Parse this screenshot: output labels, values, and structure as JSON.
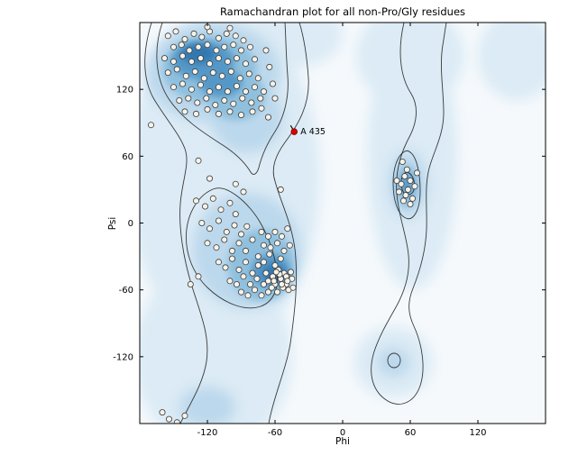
{
  "chart_data": {
    "type": "scatter",
    "title": "Ramachandran plot for all non-Pro/Gly residues",
    "xlabel": "Phi",
    "ylabel": "Psi",
    "xlim": [
      -180,
      180
    ],
    "ylim": [
      -180,
      180
    ],
    "xticks": [
      -120,
      -60,
      0,
      60,
      120
    ],
    "yticks": [
      -120,
      -60,
      0,
      60,
      120
    ],
    "grid": false,
    "legend": "none",
    "style": {
      "plot_bg": "#f5f9fc",
      "marker_fill": "#f7f3ea",
      "marker_edge": "#3c3c3c",
      "marker_radius": 3.1
    },
    "outlier": {
      "label": "A 435",
      "phi": -43,
      "psi": 82,
      "fill": "#dd0000",
      "edge": "#7a0000"
    },
    "series": [
      {
        "name": "non-Pro/Gly residues",
        "points": [
          [
            -155,
            168
          ],
          [
            -148,
            172
          ],
          [
            -140,
            165
          ],
          [
            -132,
            170
          ],
          [
            -125,
            167
          ],
          [
            -118,
            172
          ],
          [
            -110,
            166
          ],
          [
            -103,
            170
          ],
          [
            -95,
            168
          ],
          [
            -88,
            164
          ],
          [
            -150,
            158
          ],
          [
            -143,
            160
          ],
          [
            -136,
            155
          ],
          [
            -128,
            158
          ],
          [
            -120,
            160
          ],
          [
            -112,
            155
          ],
          [
            -105,
            158
          ],
          [
            -97,
            160
          ],
          [
            -90,
            155
          ],
          [
            -82,
            158
          ],
          [
            -158,
            148
          ],
          [
            -150,
            145
          ],
          [
            -142,
            150
          ],
          [
            -134,
            145
          ],
          [
            -126,
            148
          ],
          [
            -118,
            143
          ],
          [
            -110,
            148
          ],
          [
            -102,
            145
          ],
          [
            -94,
            148
          ],
          [
            -86,
            143
          ],
          [
            -78,
            147
          ],
          [
            -155,
            135
          ],
          [
            -147,
            138
          ],
          [
            -139,
            132
          ],
          [
            -131,
            136
          ],
          [
            -123,
            130
          ],
          [
            -115,
            135
          ],
          [
            -107,
            132
          ],
          [
            -99,
            136
          ],
          [
            -91,
            130
          ],
          [
            -83,
            134
          ],
          [
            -75,
            130
          ],
          [
            -150,
            122
          ],
          [
            -142,
            125
          ],
          [
            -134,
            120
          ],
          [
            -126,
            124
          ],
          [
            -118,
            118
          ],
          [
            -110,
            122
          ],
          [
            -102,
            118
          ],
          [
            -94,
            123
          ],
          [
            -86,
            118
          ],
          [
            -78,
            122
          ],
          [
            -70,
            118
          ],
          [
            -145,
            110
          ],
          [
            -137,
            112
          ],
          [
            -129,
            108
          ],
          [
            -121,
            112
          ],
          [
            -113,
            106
          ],
          [
            -105,
            110
          ],
          [
            -97,
            107
          ],
          [
            -89,
            112
          ],
          [
            -81,
            108
          ],
          [
            -73,
            112
          ],
          [
            -140,
            100
          ],
          [
            -130,
            98
          ],
          [
            -120,
            102
          ],
          [
            -110,
            98
          ],
          [
            -100,
            100
          ],
          [
            -90,
            97
          ],
          [
            -80,
            100
          ],
          [
            -72,
            103
          ],
          [
            -65,
            140
          ],
          [
            -62,
            125
          ],
          [
            -68,
            155
          ],
          [
            -60,
            112
          ],
          [
            -66,
            95
          ],
          [
            -120,
            176
          ],
          [
            -100,
            175
          ],
          [
            -130,
            20
          ],
          [
            -122,
            15
          ],
          [
            -115,
            22
          ],
          [
            -108,
            12
          ],
          [
            -100,
            18
          ],
          [
            -95,
            8
          ],
          [
            -125,
            0
          ],
          [
            -118,
            -5
          ],
          [
            -110,
            2
          ],
          [
            -103,
            -8
          ],
          [
            -96,
            -2
          ],
          [
            -90,
            -10
          ],
          [
            -85,
            -3
          ],
          [
            -120,
            -18
          ],
          [
            -112,
            -22
          ],
          [
            -105,
            -15
          ],
          [
            -98,
            -25
          ],
          [
            -92,
            -18
          ],
          [
            -86,
            -25
          ],
          [
            -80,
            -15
          ],
          [
            -110,
            -35
          ],
          [
            -104,
            -40
          ],
          [
            -98,
            -32
          ],
          [
            -92,
            -42
          ],
          [
            -86,
            -35
          ],
          [
            -80,
            -45
          ],
          [
            -75,
            -38
          ],
          [
            -100,
            -52
          ],
          [
            -94,
            -55
          ],
          [
            -88,
            -48
          ],
          [
            -82,
            -55
          ],
          [
            -76,
            -50
          ],
          [
            -70,
            -55
          ],
          [
            -90,
            -62
          ],
          [
            -84,
            -65
          ],
          [
            -78,
            -60
          ],
          [
            -72,
            -65
          ],
          [
            -66,
            -62
          ],
          [
            -75,
            -30
          ],
          [
            -70,
            -35
          ],
          [
            -65,
            -28
          ],
          [
            -60,
            -38
          ],
          [
            -55,
            -32
          ],
          [
            -68,
            -45
          ],
          [
            -62,
            -48
          ],
          [
            -57,
            -42
          ],
          [
            -52,
            -45
          ],
          [
            -66,
            -52
          ],
          [
            -60,
            -55
          ],
          [
            -55,
            -50
          ],
          [
            -50,
            -55
          ],
          [
            -63,
            -58
          ],
          [
            -58,
            -62
          ],
          [
            -53,
            -58
          ],
          [
            -48,
            -60
          ],
          [
            -70,
            -20
          ],
          [
            -64,
            -22
          ],
          [
            -58,
            -18
          ],
          [
            -52,
            -25
          ],
          [
            -47,
            -20
          ],
          [
            -60,
            -8
          ],
          [
            -54,
            -12
          ],
          [
            -49,
            -5
          ],
          [
            -72,
            -8
          ],
          [
            -66,
            -12
          ],
          [
            -55,
            30
          ],
          [
            -95,
            35
          ],
          [
            -88,
            28
          ],
          [
            -135,
            -55
          ],
          [
            -128,
            -48
          ],
          [
            -45,
            -50
          ],
          [
            -44,
            -58
          ],
          [
            -50,
            -48
          ],
          [
            -56,
            -46
          ],
          [
            -61,
            -52
          ],
          [
            -59,
            -44
          ],
          [
            -54,
            -55
          ],
          [
            -49,
            -52
          ],
          [
            -46,
            -44
          ],
          [
            55,
            42
          ],
          [
            60,
            38
          ],
          [
            52,
            35
          ],
          [
            58,
            30
          ],
          [
            64,
            33
          ],
          [
            50,
            28
          ],
          [
            56,
            25
          ],
          [
            62,
            22
          ],
          [
            54,
            20
          ],
          [
            60,
            17
          ],
          [
            48,
            38
          ],
          [
            66,
            45
          ],
          [
            57,
            48
          ],
          [
            53,
            55
          ],
          [
            -170,
            88
          ],
          [
            -128,
            56
          ],
          [
            -154,
            -176
          ],
          [
            -140,
            -173
          ],
          [
            -147,
            -179
          ],
          [
            -160,
            -170
          ],
          [
            -118,
            40
          ]
        ]
      }
    ],
    "density": {
      "levels": [
        {
          "color": "#dcebf5",
          "opacity": 1,
          "blur": "blur7",
          "blobs": [
            [
              -105,
              40,
              85,
              150
            ],
            [
              -115,
              -120,
              70,
              85
            ],
            [
              62,
              60,
              40,
              120
            ],
            [
              60,
              150,
              48,
              45
            ],
            [
              45,
              -125,
              35,
              32
            ],
            [
              -40,
              170,
              40,
              30
            ],
            [
              155,
              150,
              35,
              40
            ]
          ]
        },
        {
          "color": "#bcd8ec",
          "opacity": 1,
          "blur": "blur7",
          "blobs": [
            [
              -115,
              135,
              60,
              45
            ],
            [
              -85,
              95,
              32,
              32
            ],
            [
              -85,
              -25,
              48,
              52
            ],
            [
              58,
              35,
              17,
              30
            ],
            [
              45,
              -125,
              15,
              13
            ],
            [
              -120,
              -165,
              25,
              18
            ]
          ]
        },
        {
          "color": "#8fc0de",
          "opacity": 1,
          "blur": "blur4",
          "blobs": [
            [
              -118,
              138,
              42,
              30
            ],
            [
              -95,
              115,
              26,
              23
            ],
            [
              -72,
              -38,
              30,
              32
            ],
            [
              57,
              33,
              10,
              19
            ]
          ]
        },
        {
          "color": "#5598c8",
          "opacity": 1,
          "blur": "blur4",
          "blobs": [
            [
              -124,
              146,
              28,
              17
            ],
            [
              -108,
              126,
              19,
              13
            ],
            [
              -64,
              -43,
              17,
              15
            ],
            [
              57,
              35,
              5,
              10
            ]
          ]
        },
        {
          "color": "#2f74ad",
          "opacity": 0.9,
          "blur": "blur4",
          "blobs": [
            [
              -128,
              152,
              15,
              9
            ],
            [
              -61,
              -45,
              10,
              8
            ]
          ]
        }
      ]
    }
  }
}
